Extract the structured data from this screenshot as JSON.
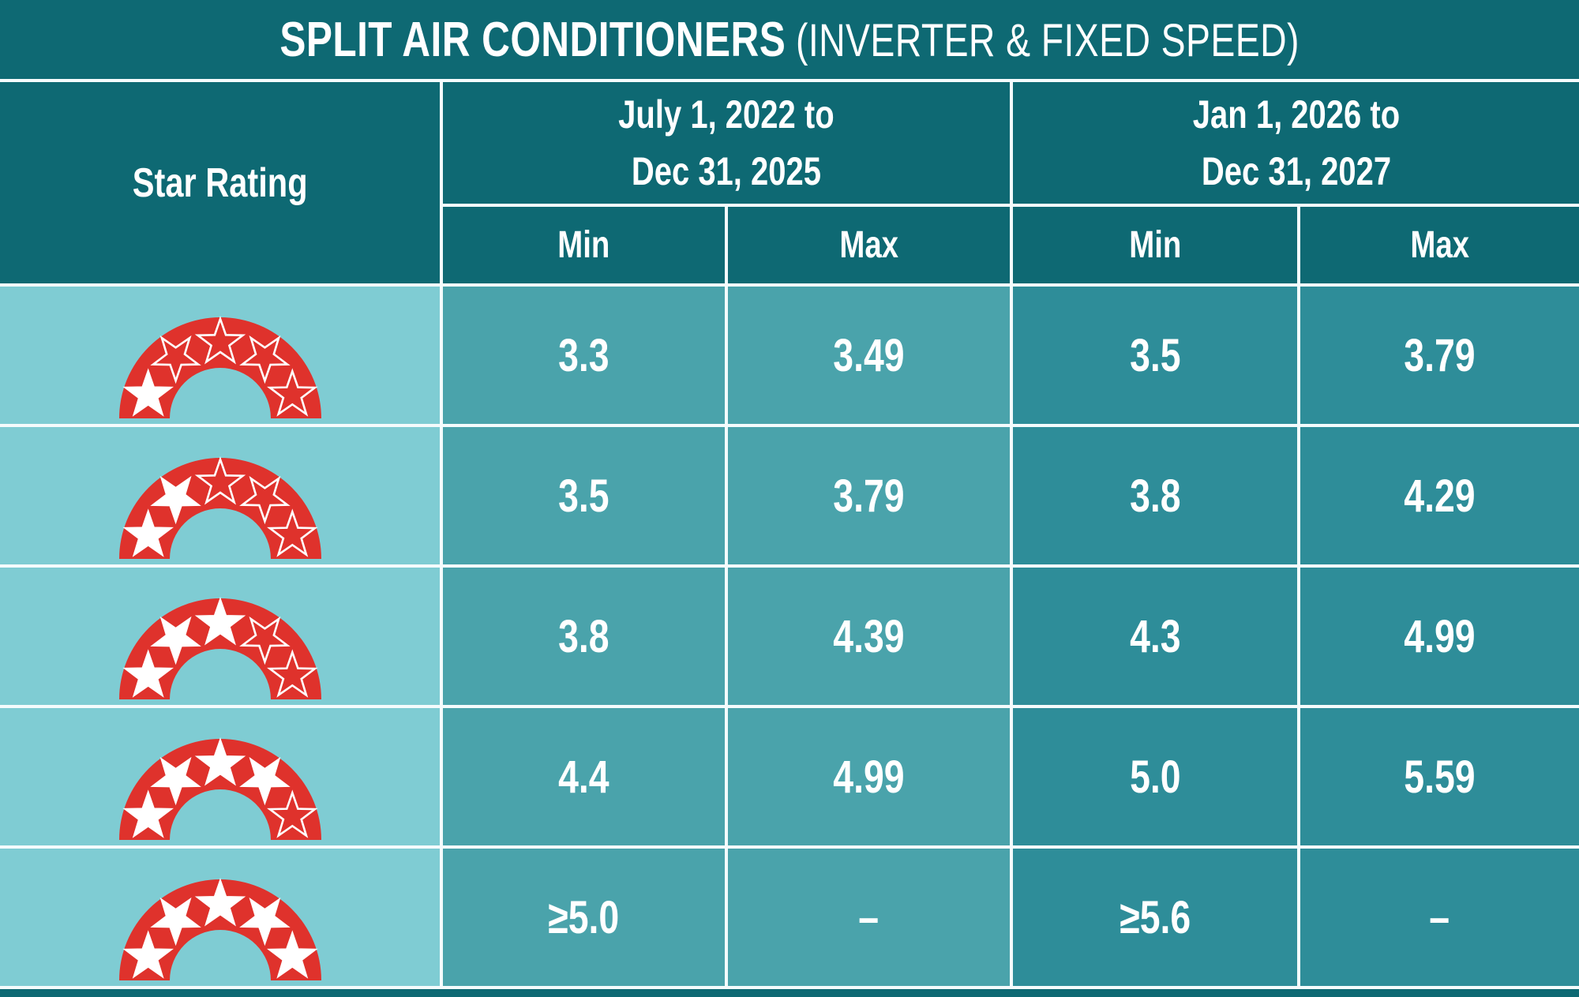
{
  "title": {
    "main": "SPLIT AIR CONDITIONERS",
    "sub": "(INVERTER & FIXED SPEED)"
  },
  "table": {
    "star_rating_header": "Star Rating",
    "periods": [
      {
        "line1": "July 1, 2022 to",
        "line2": "Dec 31, 2025",
        "min_label": "Min",
        "max_label": "Max"
      },
      {
        "line1": "Jan 1, 2026 to",
        "line2": "Dec 31, 2027",
        "min_label": "Min",
        "max_label": "Max"
      }
    ],
    "rows": [
      {
        "stars": 1,
        "star_label": "1 star rating badge",
        "p1_min": "3.3",
        "p1_max": "3.49",
        "p2_min": "3.5",
        "p2_max": "3.79"
      },
      {
        "stars": 2,
        "star_label": "2 star rating badge",
        "p1_min": "3.5",
        "p1_max": "3.79",
        "p2_min": "3.8",
        "p2_max": "4.29"
      },
      {
        "stars": 3,
        "star_label": "3 star rating badge",
        "p1_min": "3.8",
        "p1_max": "4.39",
        "p2_min": "4.3",
        "p2_max": "4.99"
      },
      {
        "stars": 4,
        "star_label": "4 star rating badge",
        "p1_min": "4.4",
        "p1_max": "4.99",
        "p2_min": "5.0",
        "p2_max": "5.59"
      },
      {
        "stars": 5,
        "star_label": "5 star rating badge",
        "p1_min": "≥5.0",
        "p1_max": "–",
        "p2_min": "≥5.6",
        "p2_max": "–"
      }
    ]
  },
  "colors": {
    "dark": "#0e6973",
    "light": "#7fccd3",
    "p1": "#4aa3ab",
    "p2": "#2e8d99",
    "red": "#df322c",
    "star_white": "#ffffff"
  },
  "chart_data": {
    "type": "table",
    "title": "SPLIT AIR CONDITIONERS (INVERTER & FIXED SPEED)",
    "columns": [
      "Star Rating",
      "July 1, 2022 to Dec 31, 2025 – Min",
      "July 1, 2022 to Dec 31, 2025 – Max",
      "Jan 1, 2026 to Dec 31, 2027 – Min",
      "Jan 1, 2026 to Dec 31, 2027 – Max"
    ],
    "rows": [
      [
        "1 Star",
        "3.3",
        "3.49",
        "3.5",
        "3.79"
      ],
      [
        "2 Star",
        "3.5",
        "3.79",
        "3.8",
        "4.29"
      ],
      [
        "3 Star",
        "3.8",
        "4.39",
        "4.3",
        "4.99"
      ],
      [
        "4 Star",
        "4.4",
        "4.99",
        "5.0",
        "5.59"
      ],
      [
        "5 Star",
        "≥5.0",
        "–",
        "≥5.6",
        "–"
      ]
    ]
  }
}
